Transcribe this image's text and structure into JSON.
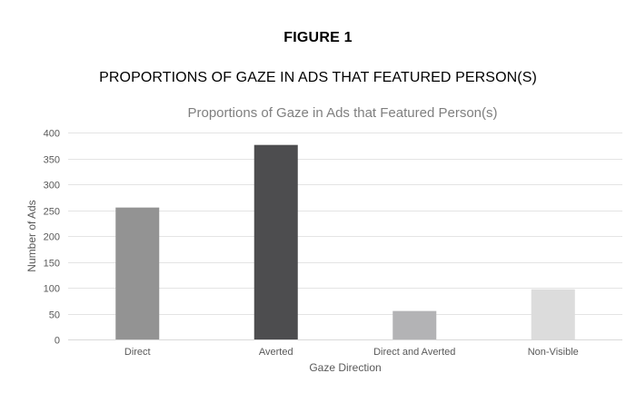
{
  "figure_label": "FIGURE 1",
  "figure_heading": "PROPORTIONS OF GAZE IN ADS THAT FEATURED PERSON(S)",
  "chart_data": {
    "type": "bar",
    "title": "Proportions of Gaze in Ads that Featured Person(s)",
    "xlabel": "Gaze Direction",
    "ylabel": "Number of Ads",
    "categories": [
      "Direct",
      "Averted",
      "Direct and Averted",
      "Non-Visible"
    ],
    "values": [
      255,
      376,
      55,
      97
    ],
    "bar_colors": [
      "#939393",
      "#4d4d4f",
      "#b3b3b5",
      "#dcdcdc"
    ],
    "ylim": [
      0,
      400
    ],
    "yticks": [
      0,
      50,
      100,
      150,
      200,
      250,
      300,
      350,
      400
    ],
    "grid": true,
    "legend": "none"
  }
}
